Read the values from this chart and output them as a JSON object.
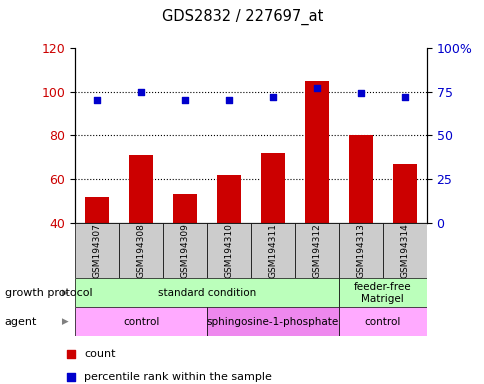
{
  "title": "GDS2832 / 227697_at",
  "samples": [
    "GSM194307",
    "GSM194308",
    "GSM194309",
    "GSM194310",
    "GSM194311",
    "GSM194312",
    "GSM194313",
    "GSM194314"
  ],
  "counts": [
    52,
    71,
    53,
    62,
    72,
    105,
    80,
    67
  ],
  "percentile_ranks": [
    70,
    75,
    70,
    70,
    72,
    77,
    74,
    72
  ],
  "left_ylim": [
    40,
    120
  ],
  "right_ylim": [
    0,
    100
  ],
  "left_yticks": [
    40,
    60,
    80,
    100,
    120
  ],
  "right_yticks": [
    0,
    25,
    50,
    75,
    100
  ],
  "right_yticklabels": [
    "0",
    "25",
    "50",
    "75",
    "100%"
  ],
  "bar_color": "#cc0000",
  "dot_color": "#0000cc",
  "bar_bottom": 40,
  "growth_protocol_groups": [
    {
      "label": "standard condition",
      "start": 0,
      "end": 6,
      "color": "#bbffbb"
    },
    {
      "label": "feeder-free\nMatrigel",
      "start": 6,
      "end": 8,
      "color": "#bbffbb"
    }
  ],
  "agent_groups": [
    {
      "label": "control",
      "start": 0,
      "end": 3,
      "color": "#ffaaff"
    },
    {
      "label": "sphingosine-1-phosphate",
      "start": 3,
      "end": 6,
      "color": "#ee88ee"
    },
    {
      "label": "control",
      "start": 6,
      "end": 8,
      "color": "#ffaaff"
    }
  ],
  "sample_box_color": "#cccccc",
  "fig_width": 4.85,
  "fig_height": 3.84,
  "dpi": 100
}
